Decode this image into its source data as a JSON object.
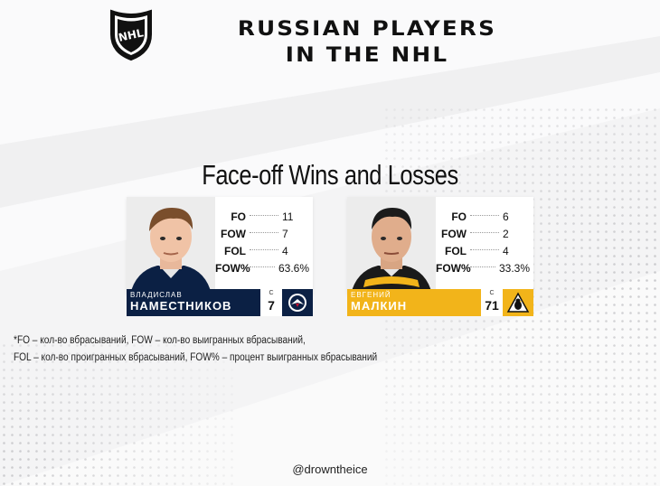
{
  "header": {
    "logo_text": "NHL",
    "title_line1": "RUSSIAN PLAYERS",
    "title_line2": "IN THE NHL"
  },
  "subtitle": "Face-off Wins and Losses",
  "players": [
    {
      "first_name": "ВЛАДИСЛАВ",
      "last_name": "НАМЕСТНИКОВ",
      "position": "C",
      "number": "7",
      "team_icon": "winnipeg-jets-logo",
      "stats": [
        {
          "label": "FO",
          "value": "11"
        },
        {
          "label": "FOW",
          "value": "7"
        },
        {
          "label": "FOL",
          "value": "4"
        },
        {
          "label": "FOW%",
          "value": "63.6%"
        }
      ]
    },
    {
      "first_name": "ЕВГЕНИЙ",
      "last_name": "МАЛКИН",
      "position": "C",
      "number": "71",
      "team_icon": "pittsburgh-penguins-logo",
      "stats": [
        {
          "label": "FO",
          "value": "6"
        },
        {
          "label": "FOW",
          "value": "2"
        },
        {
          "label": "FOL",
          "value": "4"
        },
        {
          "label": "FOW%",
          "value": "33.3%"
        }
      ]
    }
  ],
  "footnote": {
    "line1": "*FO – кол-во вбрасываний, FOW – кол-во выигранных вбрасываний,",
    "line2": "FOL – кол-во проигранных вбрасываний, FOW% – процент выигранных вбрасываний"
  },
  "handle": "@drowntheice",
  "colors": {
    "jets_navy": "#0b2044",
    "penguins_gold": "#f2b41a",
    "background": "#f4f4f5"
  }
}
